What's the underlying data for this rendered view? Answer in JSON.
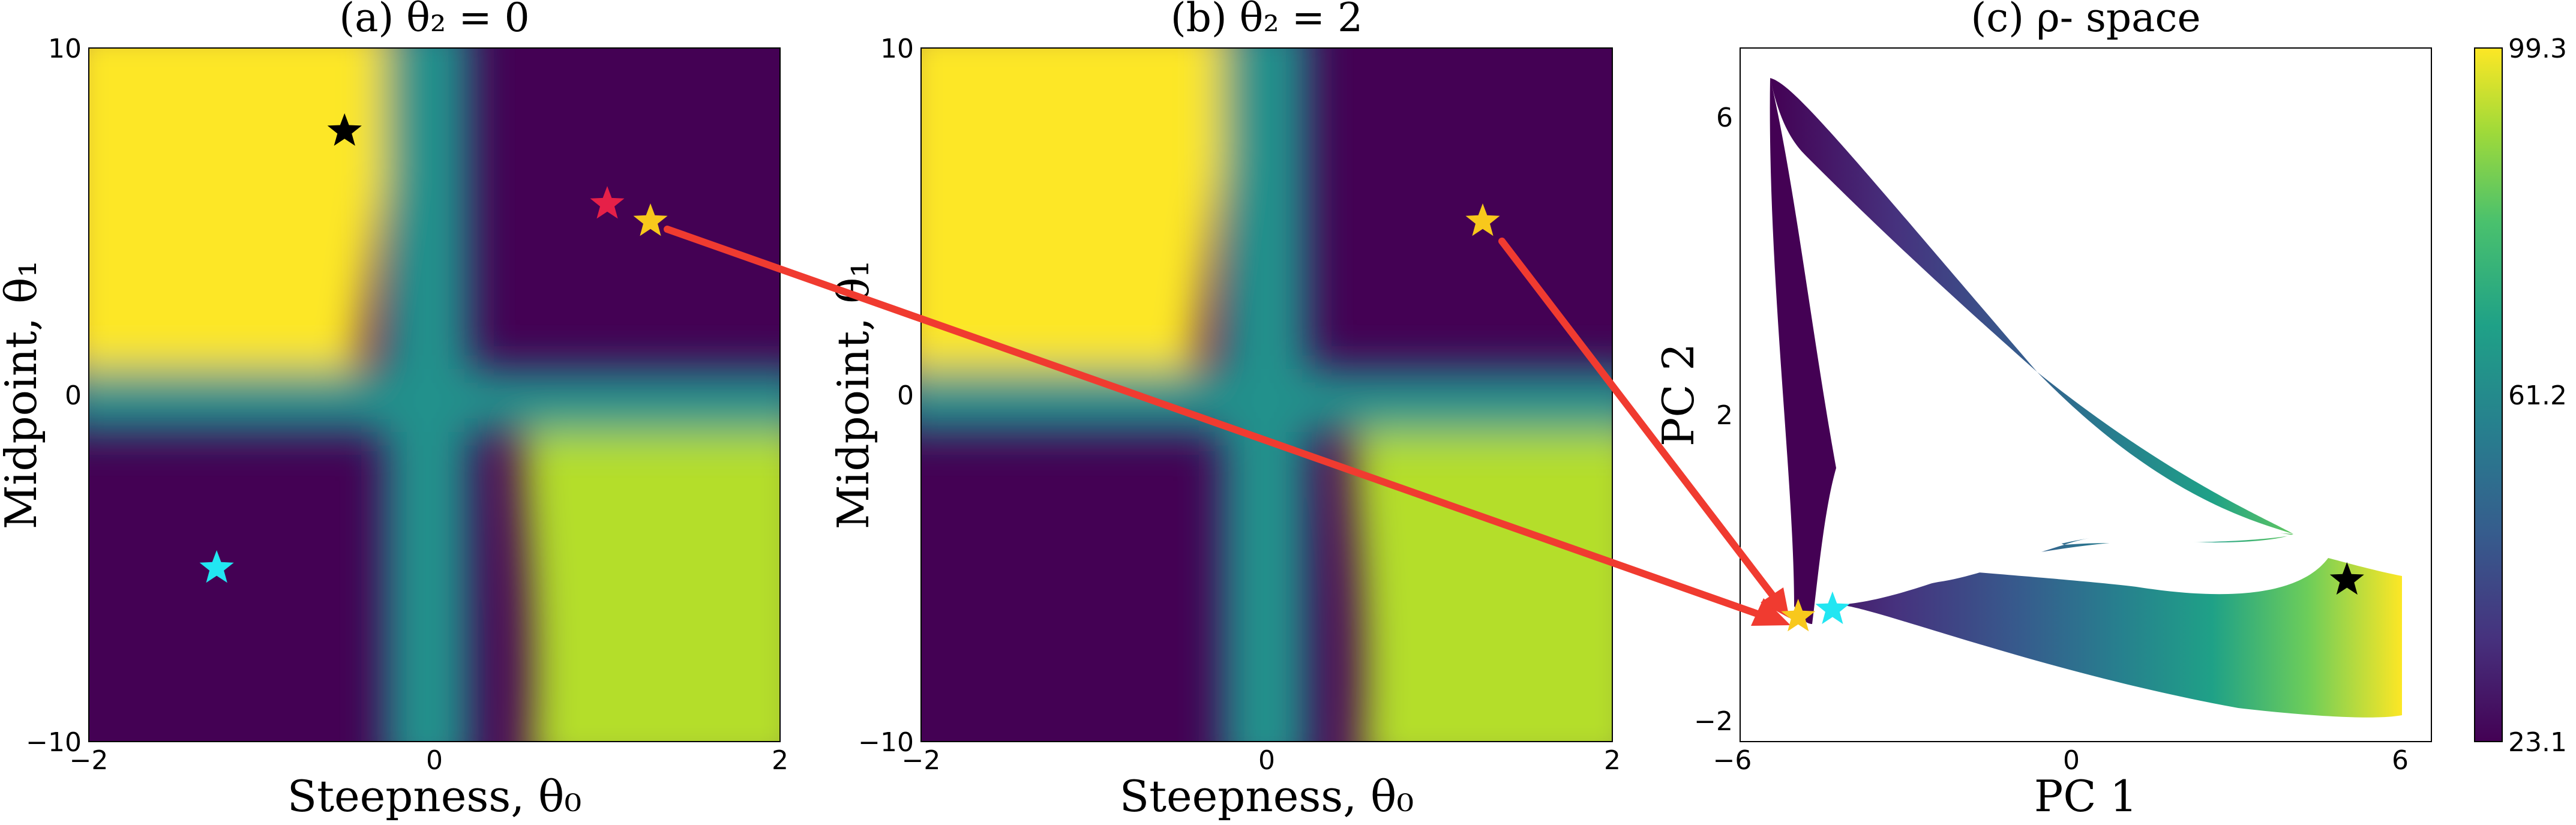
{
  "colorbar": {
    "min": 23.1,
    "max": 99.3,
    "tick_labels": [
      "99.3",
      "61.2",
      "23.1"
    ],
    "colormap": "viridis"
  },
  "colors": {
    "arrow": "#f03b30",
    "star_black": "#000000",
    "star_cyan": "#22e6f2",
    "star_gold": "#f8c81c",
    "star_red": "#e62048"
  },
  "chart_data": [
    {
      "type": "heatmap",
      "title": "(a) θ₂ = 0",
      "xlabel": "Steepness, θ₀",
      "ylabel": "Midpoint, θ₁",
      "xlim": [
        -2,
        2
      ],
      "ylim": [
        -10,
        10
      ],
      "xticks": [
        "−2",
        "0",
        "2"
      ],
      "yticks": [
        "10",
        "0",
        "−10"
      ],
      "value_range": [
        23.1,
        99.3
      ],
      "description_values": {
        "top_left": 99.3,
        "top_right": 23.1,
        "bottom_left": 23.1,
        "bottom_right": 92.0,
        "center_band": 61.2
      },
      "markers": [
        {
          "color": "star_black",
          "x": -0.52,
          "y": 7.6
        },
        {
          "color": "star_cyan",
          "x": -1.26,
          "y": -5.0
        },
        {
          "color": "star_red",
          "x": 1.0,
          "y": 5.5
        },
        {
          "color": "star_gold",
          "x": 1.25,
          "y": 5.0
        }
      ]
    },
    {
      "type": "heatmap",
      "title": "(b) θ₂ = 2",
      "xlabel": "Steepness, θ₀",
      "ylabel": "Midpoint, θ₁",
      "xlim": [
        -2,
        2
      ],
      "ylim": [
        -10,
        10
      ],
      "xticks": [
        "−2",
        "0",
        "2"
      ],
      "yticks": [
        "10",
        "0",
        "−10"
      ],
      "value_range": [
        23.1,
        99.3
      ],
      "markers": [
        {
          "color": "star_gold",
          "x": 1.25,
          "y": 5.0
        }
      ]
    },
    {
      "type": "scatter",
      "title": "(c) ρ- space",
      "xlabel": "PC 1",
      "ylabel": "PC 2",
      "xlim": [
        -6.2,
        6.9
      ],
      "ylim": [
        -2.25,
        7.2
      ],
      "xticks": [
        "−6",
        "0",
        "6"
      ],
      "yticks": [
        "6",
        "2",
        "−2"
      ],
      "markers": [
        {
          "color": "star_black",
          "x": 5.3,
          "y": -0.05
        },
        {
          "color": "star_cyan",
          "x": -4.45,
          "y": -0.45
        },
        {
          "color": "star_gold",
          "x": -5.1,
          "y": -0.55
        }
      ]
    }
  ]
}
